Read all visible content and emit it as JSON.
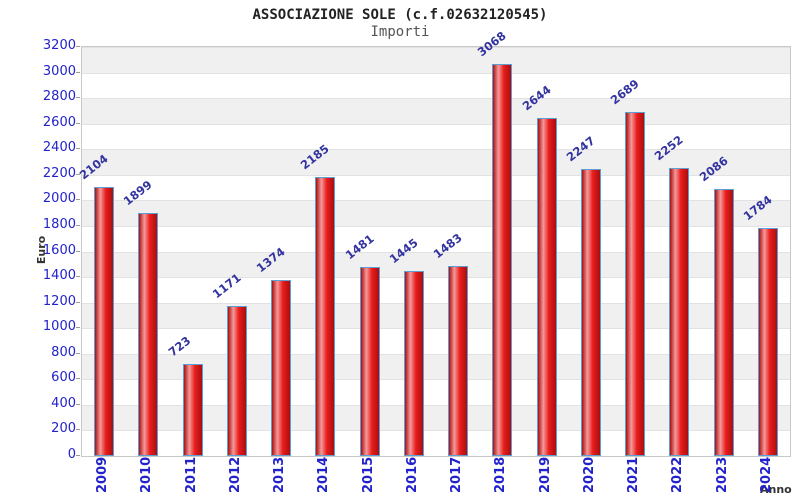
{
  "header": {
    "title": "ASSOCIAZIONE SOLE (c.f.02632120545)",
    "subtitle": "Importi"
  },
  "chart_data": {
    "type": "bar",
    "title": "ASSOCIAZIONE SOLE (c.f.02632120545)",
    "subtitle": "Importi",
    "xlabel": "Anno",
    "ylabel": "Euro",
    "categories": [
      "2009",
      "2010",
      "2011",
      "2012",
      "2013",
      "2014",
      "2015",
      "2016",
      "2017",
      "2018",
      "2019",
      "2020",
      "2021",
      "2022",
      "2023",
      "2024"
    ],
    "values": [
      2104,
      1899,
      723,
      1171,
      1374,
      2185,
      1481,
      1445,
      1483,
      3068,
      2644,
      2247,
      2689,
      2252,
      2086,
      1784
    ],
    "ylim": [
      0,
      3200
    ],
    "ytick_step": 200,
    "grid": true,
    "legend": "none",
    "colors": {
      "axis_tick_label": "#2222cc",
      "value_label": "#3333a0",
      "bar_border": "#5c9fd6",
      "bar_gradient": [
        "#aa0f0f",
        "#f59a9a",
        "#e91c1c",
        "#aa0f0f"
      ],
      "band_gray": "#f0f0f0",
      "band_white": "#ffffff",
      "plot_border": "#c8c8c8"
    }
  }
}
